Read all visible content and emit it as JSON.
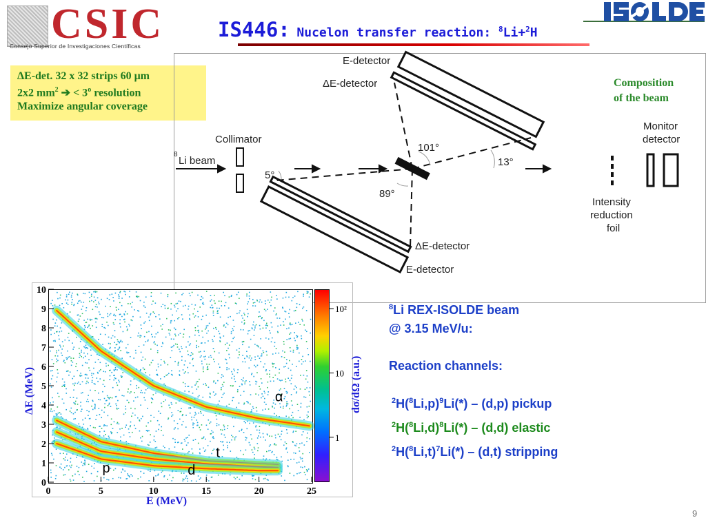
{
  "header": {
    "csic_word": "CSIC",
    "csic_subtitle": "Consejo Superior de Investigaciones Científicas",
    "title_code": "IS446:",
    "title_text": "Nucelon transfer reaction: ",
    "title_formula": {
      "sup1": "8",
      "el1": "Li+",
      "sup2": "2",
      "el2": "H"
    },
    "isolde_logo": "ISOLDE"
  },
  "info_box": {
    "line1_prefix": "ΔE-det. 32 x 32 strips 60 μm",
    "line2_a": "2x2 mm",
    "line2_sup": "2",
    "line2_arrow": "➔",
    "line2_b": " < 3",
    "line2_sup2": "o",
    "line2_c": " resolution",
    "line3": "Maximize angular coverage"
  },
  "diagram": {
    "labels": {
      "e_detector_top": "E-detector",
      "de_detector_top": "ΔE-detector",
      "collimator": "Collimator",
      "beam_sup": "8",
      "beam": "Li beam",
      "angle_5": "5°",
      "angle_101": "101°",
      "angle_89": "89°",
      "angle_13": "13°",
      "de_detector_bottom": "ΔE-detector",
      "e_detector_bottom": "E-detector",
      "monitor_1": "Monitor",
      "monitor_2": "detector",
      "intensity_1": "Intensity",
      "intensity_2": "reduction",
      "intensity_3": "foil"
    },
    "composition_1": "Composition",
    "composition_2": "of the beam"
  },
  "chart_data": {
    "type": "heatmap",
    "xlabel": "E (MeV)",
    "ylabel": "ΔE (MeV)",
    "colorbar_label": "dσ/dΩ (a.u.)",
    "xlim": [
      0,
      25
    ],
    "ylim": [
      0,
      10
    ],
    "x_ticks": [
      "0",
      "5",
      "10",
      "15",
      "20",
      "25"
    ],
    "y_ticks": [
      "0",
      "1",
      "2",
      "3",
      "4",
      "5",
      "6",
      "7",
      "8",
      "9",
      "10"
    ],
    "colorbar_ticks": [
      {
        "label": "10²",
        "value": 100
      },
      {
        "label": "10",
        "value": 10
      },
      {
        "label": "1",
        "value": 1
      }
    ],
    "bands": [
      {
        "name": "α",
        "points": [
          [
            0.8,
            8.9
          ],
          [
            5,
            6.8
          ],
          [
            10,
            5.0
          ],
          [
            15,
            3.9
          ],
          [
            20,
            3.3
          ],
          [
            25,
            2.9
          ]
        ]
      },
      {
        "name": "t",
        "points": [
          [
            0.8,
            3.2
          ],
          [
            5,
            2.1
          ],
          [
            10,
            1.5
          ],
          [
            15,
            1.1
          ],
          [
            20,
            0.95
          ],
          [
            22,
            0.9
          ]
        ]
      },
      {
        "name": "d",
        "points": [
          [
            0.8,
            2.6
          ],
          [
            5,
            1.6
          ],
          [
            10,
            1.2
          ],
          [
            15,
            0.95
          ],
          [
            20,
            0.8
          ],
          [
            22,
            0.75
          ]
        ]
      },
      {
        "name": "p",
        "points": [
          [
            0.8,
            2.0
          ],
          [
            5,
            1.2
          ],
          [
            10,
            0.85
          ],
          [
            15,
            0.7
          ],
          [
            20,
            0.6
          ],
          [
            22,
            0.6
          ]
        ]
      }
    ],
    "particle_labels": [
      {
        "text": "α",
        "x": 21.9,
        "y": 4.2
      },
      {
        "text": "t",
        "x": 16.1,
        "y": 1.3
      },
      {
        "text": "p",
        "x": 5.5,
        "y": 0.5
      },
      {
        "text": "d",
        "x": 13.6,
        "y": 0.4
      }
    ]
  },
  "right_text": {
    "beam_sup": "8",
    "beam_line1": "Li REX-ISOLDE beam",
    "beam_line2": "@ 3.15 MeV/u:",
    "channels_title": "Reaction channels:",
    "channels": [
      {
        "s1": "2",
        "a": "H(",
        "s2": "8",
        "b": "Li,p)",
        "s3": "9",
        "c": "Li(*) – (d,p) pickup",
        "color": "#1c3fc8"
      },
      {
        "s1": "2",
        "a": "H(",
        "s2": "8",
        "b": "Li,d)",
        "s3": "8",
        "c": "Li(*) – (d,d) elastic",
        "color": "#1c8a1c"
      },
      {
        "s1": "2",
        "a": "H(",
        "s2": "8",
        "b": "Li,t)",
        "s3": "7",
        "c": "Li(*)  – (d,t)  stripping",
        "color": "#1c3fc8"
      }
    ]
  },
  "page_number": "9"
}
